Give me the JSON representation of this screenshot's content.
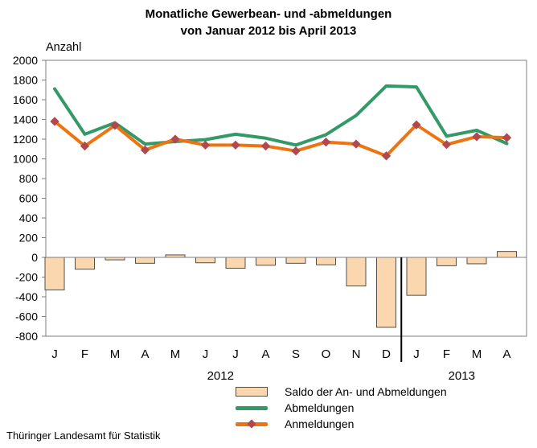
{
  "title": {
    "line1": "Monatliche Gewerbean- und -abmeldungen",
    "line2": "von Januar 2012 bis April 2013"
  },
  "y_axis_label": "Anzahl",
  "source": "Thüringer Landesamt für Statistik",
  "colors": {
    "abmeldungen": "#339966",
    "anmeldungen": "#EE7411",
    "marker": "#B0494D",
    "saldo_fill": "#FBD7AF",
    "saldo_border": "#54504B",
    "axis": "#7F7F7F",
    "separator": "#000000",
    "text": "#000000"
  },
  "chart_data": {
    "type": "combo",
    "title": "Monatliche Gewerbean- und -abmeldungen von Januar 2012 bis April 2013",
    "ylabel": "Anzahl",
    "categories": [
      "J",
      "F",
      "M",
      "A",
      "M",
      "J",
      "J",
      "A",
      "S",
      "O",
      "N",
      "D",
      "J",
      "F",
      "M",
      "A"
    ],
    "year_groups": [
      {
        "label": "2012",
        "months": 12
      },
      {
        "label": "2013",
        "months": 4
      }
    ],
    "series": [
      {
        "name": "Saldo der An- und Abmeldungen",
        "type": "bar",
        "values": [
          -330,
          -120,
          -25,
          -60,
          25,
          -55,
          -110,
          -80,
          -60,
          -75,
          -290,
          -710,
          -385,
          -85,
          -65,
          60
        ]
      },
      {
        "name": "Abmeldungen",
        "type": "line",
        "values": [
          1710,
          1250,
          1365,
          1150,
          1175,
          1195,
          1250,
          1210,
          1140,
          1245,
          1440,
          1740,
          1730,
          1230,
          1290,
          1155
        ]
      },
      {
        "name": "Anmeldungen",
        "type": "line-diamond",
        "values": [
          1380,
          1130,
          1340,
          1090,
          1200,
          1140,
          1140,
          1130,
          1080,
          1170,
          1150,
          1030,
          1345,
          1145,
          1225,
          1215
        ]
      }
    ],
    "ylim": [
      -800,
      2000
    ],
    "ytick_step": 200,
    "grid": "off",
    "legend_position": "bottom-right"
  }
}
